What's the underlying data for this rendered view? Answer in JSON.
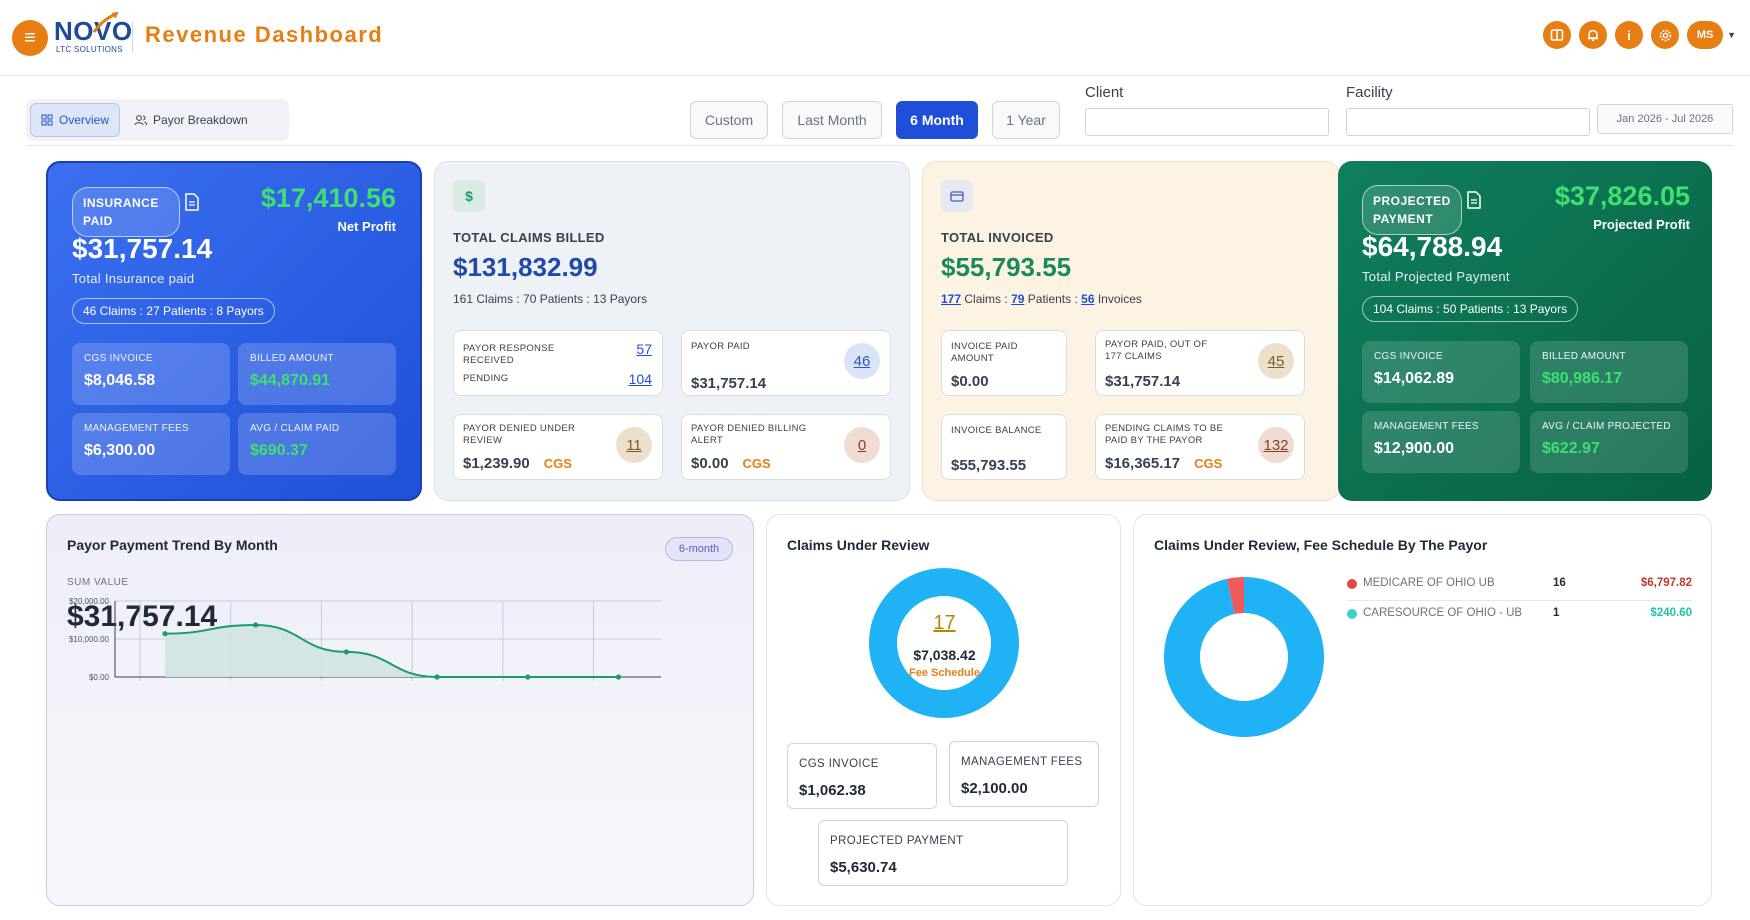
{
  "header": {
    "logo_text": "NOVO",
    "logo_sub": "LTC SOLUTIONS",
    "title": "Revenue Dashboard",
    "avatar": "MS",
    "icons": [
      "columns-icon",
      "bell-icon",
      "info-icon",
      "gear-icon"
    ]
  },
  "toolbar": {
    "tabs": [
      {
        "label": "Overview",
        "active": true
      },
      {
        "label": "Payor Breakdown",
        "active": false
      }
    ],
    "ranges": [
      {
        "label": "Custom",
        "active": false
      },
      {
        "label": "Last Month",
        "active": false
      },
      {
        "label": "6 Month",
        "active": true
      },
      {
        "label": "1 Year",
        "active": false
      }
    ],
    "client_label": "Client",
    "client_value": "",
    "facility_label": "Facility",
    "facility_value": "",
    "date_range": "Jan 2026 - Jul 2026"
  },
  "insurance": {
    "pill": "INSURANCE PAID",
    "net_profit_value": "$17,410.56",
    "net_profit_label": "Net Profit",
    "amount": "$31,757.14",
    "amount_label": "Total Insurance paid",
    "summary": "46 Claims : 27 Patients : 8 Payors",
    "tiles": [
      {
        "label": "CGS INVOICE",
        "value": "$8,046.58",
        "green": false
      },
      {
        "label": "BILLED AMOUNT",
        "value": "$44,870.91",
        "green": true
      },
      {
        "label": "MANAGEMENT FEES",
        "value": "$6,300.00",
        "green": false
      },
      {
        "label": "AVG / CLAIM PAID",
        "value": "$690.37",
        "green": true
      }
    ]
  },
  "claims_billed": {
    "icon_glyph": "$",
    "title": "TOTAL CLAIMS BILLED",
    "amount": "$131,832.99",
    "summary": "161 Claims : 70 Patients : 13 Payors",
    "response_label": "PAYOR RESPONSE RECEIVED",
    "response_count": "57",
    "pending_label": "PENDING",
    "pending_count": "104",
    "payor_paid_label": "PAYOR PAID",
    "payor_paid_value": "$31,757.14",
    "payor_paid_count": "46",
    "denied_review_label": "PAYOR DENIED UNDER REVIEW",
    "denied_review_value": "$1,239.90",
    "denied_review_count": "11",
    "denied_billing_label": "PAYOR DENIED BILLING ALERT",
    "denied_billing_value": "$0.00",
    "denied_billing_count": "0",
    "cgs_tag": "CGS"
  },
  "invoiced": {
    "title": "TOTAL INVOICED",
    "amount": "$55,793.55",
    "claims_count": "177",
    "claims_word": "Claims :",
    "patients_count": "79",
    "patients_word": "Patients :",
    "invoices_count": "56",
    "invoices_word": "Invoices",
    "paid_label": "INVOICE PAID AMOUNT",
    "paid_value": "$0.00",
    "payor_paid_label": "PAYOR PAID, OUT OF 177 CLAIMS",
    "payor_paid_value": "$31,757.14",
    "payor_paid_count": "45",
    "balance_label": "INVOICE BALANCE",
    "balance_value": "$55,793.55",
    "pending_label": "PENDING CLAIMS TO BE PAID BY THE PAYOR",
    "pending_value": "$16,365.17",
    "pending_count": "132",
    "cgs_tag": "CGS"
  },
  "projected": {
    "pill": "PROJECTED PAYMENT",
    "profit_value": "$37,826.05",
    "profit_label": "Projected Profit",
    "amount": "$64,788.94",
    "amount_label": "Total Projected Payment",
    "summary": "104 Claims : 50 Patients : 13 Payors",
    "tiles": [
      {
        "label": "CGS INVOICE",
        "value": "$14,062.89",
        "green": false
      },
      {
        "label": "BILLED AMOUNT",
        "value": "$80,986.17",
        "green": true
      },
      {
        "label": "MANAGEMENT FEES",
        "value": "$12,900.00",
        "green": false
      },
      {
        "label": "AVG / CLAIM PROJECTED",
        "value": "$622.97",
        "green": true
      }
    ]
  },
  "trend": {
    "title": "Payor Payment Trend By Month",
    "badge": "6-month",
    "sum_label": "SUM VALUE",
    "sum_value": "$31,757.14"
  },
  "chart_data": {
    "type": "area",
    "title": "Payor Payment Trend By Month",
    "x": [
      1,
      2,
      3,
      4,
      5,
      6
    ],
    "values": [
      11400,
      13700,
      6600,
      0,
      0,
      0
    ],
    "ylim": [
      0,
      20000
    ],
    "yticks": [
      "$0.00",
      "$10,000.00",
      "$20,000.00"
    ],
    "ytick_values": [
      0,
      10000,
      20000
    ],
    "grid": true,
    "line_color": "#1a9b6c",
    "fill_color": "#cfe3e2"
  },
  "review": {
    "title": "Claims Under Review",
    "count": "17",
    "amount": "$7,038.42",
    "amount_label": "Fee Schedule",
    "donut_color": "#1fb3f5",
    "boxes": {
      "cgs_label": "CGS INVOICE",
      "cgs_value": "$1,062.38",
      "mgmt_label": "MANAGEMENT FEES",
      "mgmt_value": "$2,100.00",
      "proj_label": "PROJECTED PAYMENT",
      "proj_value": "$5,630.74"
    }
  },
  "fee_schedule": {
    "title": "Claims Under Review, Fee Schedule By The Payor",
    "payors": [
      {
        "name": "MEDICARE OF OHIO UB",
        "count": "16",
        "amount": "$6,797.82",
        "color": "#e04848",
        "amount_color": "#c0392b"
      },
      {
        "name": "CARESOURCE OF OHIO - UB",
        "count": "1",
        "amount": "$240.60",
        "color": "#3ad1c8",
        "amount_color": "#22c3a8"
      }
    ],
    "donut_colors": [
      "#1fb3f5",
      "#f15a5a"
    ]
  }
}
